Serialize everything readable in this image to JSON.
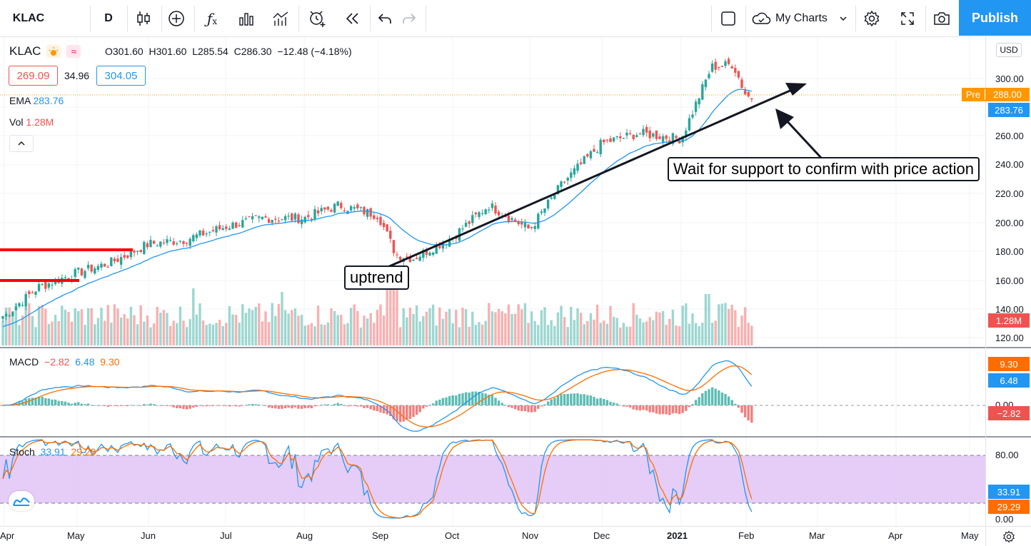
{
  "toolbar": {
    "symbol": "KLAC",
    "interval": "D",
    "layout_name": "My Charts",
    "publish_label": "Publish"
  },
  "legend": {
    "symbol": "KLAC",
    "open": "O301.60",
    "high": "H301.60",
    "low": "L285.54",
    "close": "C286.30",
    "change": "−12.48 (−4.18%)",
    "bid": "269.09",
    "spread": "34.96",
    "ask": "304.05",
    "ema_label": "EMA",
    "ema_value": "283.76",
    "vol_label": "Vol",
    "vol_value": "1.28M",
    "macd_label": "MACD",
    "macd_hist": "−2.82",
    "macd_line": "6.48",
    "macd_signal": "9.30",
    "stoch_label": "Stoch",
    "stoch_k": "33.91",
    "stoch_d": "29.29"
  },
  "annotations": {
    "uptrend": "uptrend",
    "support": "Wait for support to confirm with price action"
  },
  "price_axis": {
    "currency": "USD",
    "ticks": [
      "300.00",
      "280.00",
      "260.00",
      "240.00",
      "220.00",
      "200.00",
      "180.00",
      "160.00",
      "140.00",
      "120.00"
    ],
    "pre_label": "Pre",
    "pre_value": "288.00",
    "ema_tag": "283.76",
    "vol_tag": "1.28M",
    "macd_ticks": [
      "0.00"
    ],
    "macd_signal_tag": "9.30",
    "macd_line_tag": "6.48",
    "macd_hist_tag": "−2.82",
    "stoch_ticks": [
      "80.00",
      "0.00"
    ],
    "stoch_k_tag": "33.91",
    "stoch_d_tag": "29.29"
  },
  "time_axis": {
    "months": [
      "Apr",
      "May",
      "Jun",
      "Jul",
      "Aug",
      "Sep",
      "Oct",
      "Nov",
      "Dec",
      "2021",
      "Feb",
      "Mar",
      "Apr",
      "May"
    ]
  },
  "colors": {
    "up": "#26a69a",
    "down": "#ef5350",
    "ema": "#2196f3",
    "signal": "#ff6d00",
    "stoch_band": "#e1c4f7",
    "accent": "#2196f3",
    "level": "#ff0000"
  },
  "chart_data": {
    "type": "candlestick",
    "symbol": "KLAC",
    "interval": "D",
    "ylim": [
      115,
      318
    ],
    "x_months": [
      "Apr",
      "May",
      "Jun",
      "Jul",
      "Aug",
      "Sep",
      "Oct",
      "Nov",
      "Dec",
      "Jan 2021",
      "Feb"
    ],
    "close_path": [
      [
        "Apr-01",
        135
      ],
      [
        "Apr-15",
        155
      ],
      [
        "May-01",
        165
      ],
      [
        "May-15",
        172
      ],
      [
        "Jun-01",
        185
      ],
      [
        "Jun-15",
        188
      ],
      [
        "Jul-01",
        197
      ],
      [
        "Jul-15",
        203
      ],
      [
        "Aug-01",
        203
      ],
      [
        "Aug-15",
        212
      ],
      [
        "Sep-01",
        205
      ],
      [
        "Sep-08",
        178
      ],
      [
        "Sep-15",
        175
      ],
      [
        "Oct-01",
        190
      ],
      [
        "Oct-15",
        212
      ],
      [
        "Nov-01",
        195
      ],
      [
        "Nov-15",
        228
      ],
      [
        "Dec-01",
        255
      ],
      [
        "Dec-15",
        262
      ],
      [
        "Jan-01",
        258
      ],
      [
        "Jan-15",
        308
      ],
      [
        "Jan-25",
        310
      ],
      [
        "Feb-01",
        288
      ],
      [
        "Feb-04",
        286.3
      ]
    ],
    "ema_last": 283.76,
    "resistance_levels": [
      180,
      160
    ],
    "trendline": {
      "from": [
        "Sep-08",
        172
      ],
      "to": [
        "Mar-10",
        298
      ]
    },
    "macd": {
      "macd": 6.48,
      "signal": 9.3,
      "histogram": -2.82
    },
    "stoch": {
      "k": 33.91,
      "d": 29.29,
      "upper": 80,
      "lower": 20
    },
    "volume_last": "1.28M"
  }
}
